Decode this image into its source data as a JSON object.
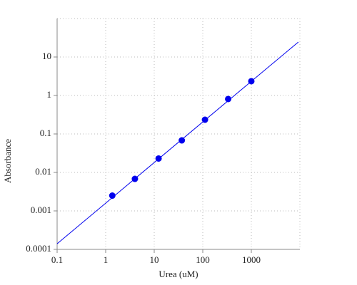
{
  "chart_data": {
    "type": "scatter",
    "x_label": "Urea (uM)",
    "y_label": "Absorbance",
    "xlim": [
      0.1,
      10000
    ],
    "ylim": [
      0.0001,
      100
    ],
    "xticks": [
      0.1,
      1,
      10,
      100,
      1000
    ],
    "yticks": [
      0.0001,
      0.001,
      0.01,
      0.1,
      1,
      10
    ],
    "x_scale": "log",
    "y_scale": "log",
    "grid": true,
    "series": [
      {
        "mode": "markers",
        "color": "#0000ee",
        "x": [
          1.37,
          4.0,
          12.3,
          37,
          111,
          333,
          1000
        ],
        "values": [
          0.0025,
          0.0068,
          0.023,
          0.068,
          0.234,
          0.81,
          2.35
        ]
      },
      {
        "mode": "line",
        "color": "#0000ee",
        "x": [
          0.1,
          9300
        ],
        "values": [
          0.00014,
          24.5
        ]
      }
    ]
  }
}
